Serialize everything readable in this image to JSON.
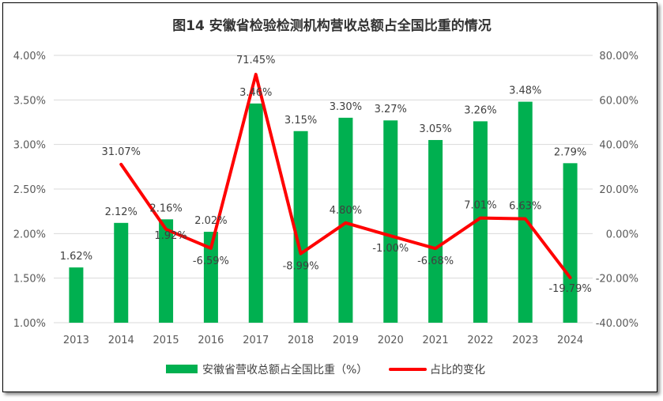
{
  "chart_data": {
    "type": "bar+line",
    "title": "图14 安徽省检验检测机构营收总额占全国比重的情况",
    "categories": [
      "2013",
      "2014",
      "2015",
      "2016",
      "2017",
      "2018",
      "2019",
      "2020",
      "2021",
      "2022",
      "2023",
      "2024"
    ],
    "series": [
      {
        "name": "安徽省营收总额占全国比重（%）",
        "type": "bar",
        "axis": "left",
        "color": "#00B050",
        "values": [
          1.62,
          2.12,
          2.16,
          2.02,
          3.46,
          3.15,
          3.3,
          3.27,
          3.05,
          3.26,
          3.48,
          2.79
        ],
        "labels": [
          "1.62%",
          "2.12%",
          "2.16%",
          "2.02%",
          "3.46%",
          "3.15%",
          "3.30%",
          "3.27%",
          "3.05%",
          "3.26%",
          "3.48%",
          "2.79%"
        ]
      },
      {
        "name": "占比的变化",
        "type": "line",
        "axis": "right",
        "color": "#FF0000",
        "values": [
          null,
          31.07,
          1.92,
          -6.59,
          71.45,
          -8.99,
          4.8,
          -1.0,
          -6.68,
          7.01,
          6.63,
          -19.79
        ],
        "labels": [
          "",
          "31.07%",
          "1.92%",
          "-6.59%",
          "71.45%",
          "-8.99%",
          "4.80%",
          "-1.00%",
          "-6.68%",
          "7.01%",
          "6.63%",
          "-19.79%"
        ]
      }
    ],
    "left_axis": {
      "ylim": [
        1.0,
        4.0
      ],
      "ticks": [
        "1.00%",
        "1.50%",
        "2.00%",
        "2.50%",
        "3.00%",
        "3.50%",
        "4.00%"
      ]
    },
    "right_axis": {
      "ylim": [
        -40,
        80
      ],
      "ticks": [
        "-40.00%",
        "-20.00%",
        "0.00%",
        "20.00%",
        "40.00%",
        "60.00%",
        "80.00%"
      ]
    },
    "grid": true,
    "legend_position": "bottom"
  }
}
